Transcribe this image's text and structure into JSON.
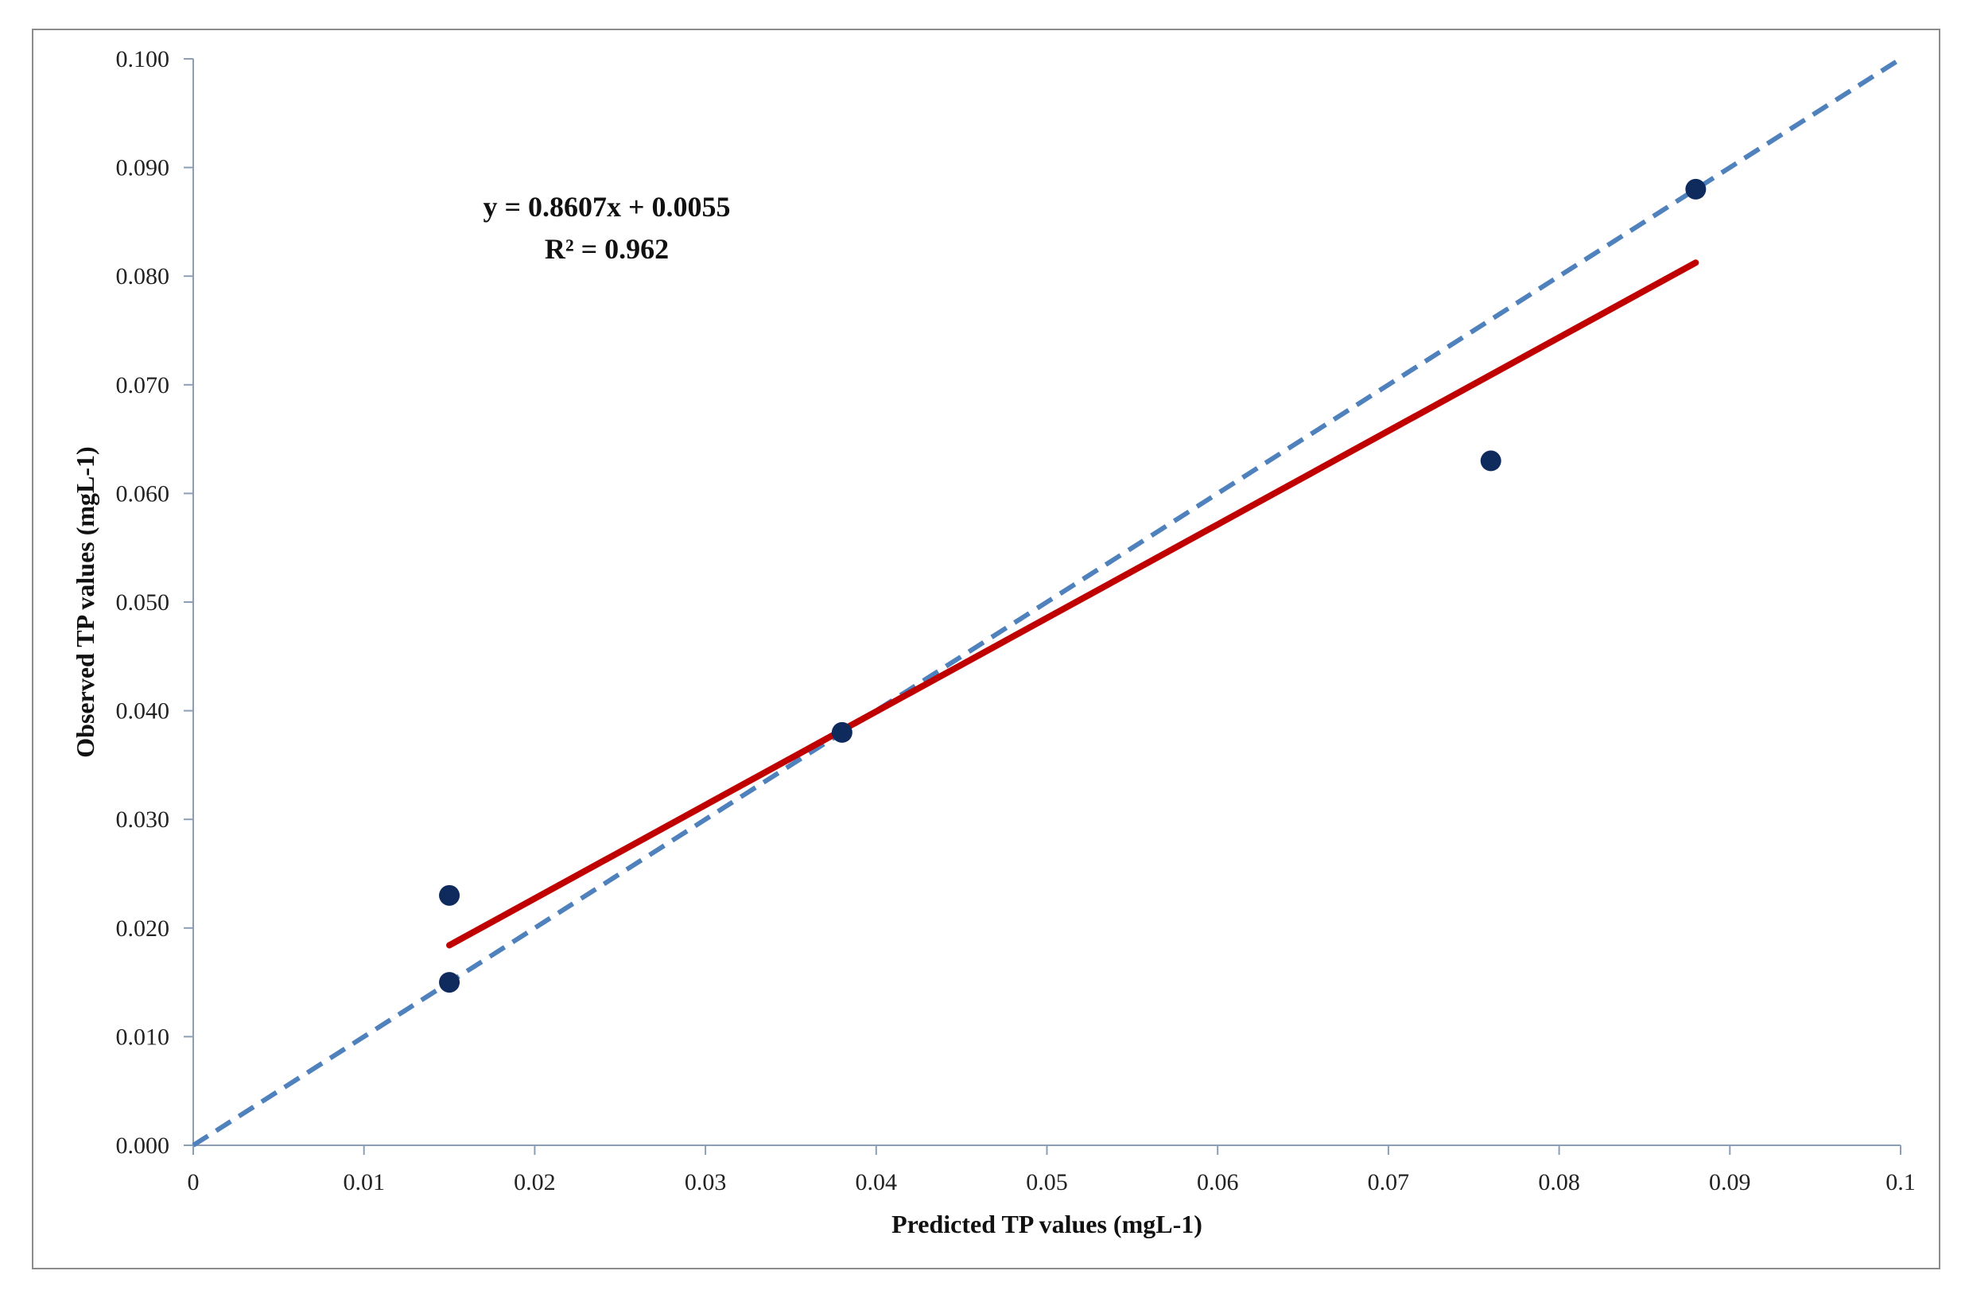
{
  "chart_data": {
    "type": "scatter",
    "xlabel": "Predicted TP values (mgL-1)",
    "ylabel": "Observed TP values (mgL-1)",
    "xlim": [
      0,
      0.1
    ],
    "ylim": [
      0,
      0.1
    ],
    "x_ticks": [
      "0",
      "0.01",
      "0.02",
      "0.03",
      "0.04",
      "0.05",
      "0.06",
      "0.07",
      "0.08",
      "0.09",
      "0.1"
    ],
    "y_ticks": [
      "0.000",
      "0.010",
      "0.020",
      "0.030",
      "0.040",
      "0.050",
      "0.060",
      "0.070",
      "0.080",
      "0.090",
      "0.100"
    ],
    "grid": false,
    "points": [
      {
        "x": 0.015,
        "y": 0.023
      },
      {
        "x": 0.015,
        "y": 0.015
      },
      {
        "x": 0.038,
        "y": 0.038
      },
      {
        "x": 0.076,
        "y": 0.063
      },
      {
        "x": 0.088,
        "y": 0.088
      }
    ],
    "trendline": {
      "slope": 0.8607,
      "intercept": 0.0055,
      "x_range": [
        0.015,
        0.088
      ],
      "color": "#c00000"
    },
    "identity_line": {
      "x_range": [
        0,
        0.1
      ],
      "color": "#4f81bd",
      "style": "dashed"
    },
    "point_color": "#0f2a5c",
    "annotation": {
      "equation": "y = 0.8607x + 0.0055",
      "r2": "R² = 0.962"
    }
  }
}
